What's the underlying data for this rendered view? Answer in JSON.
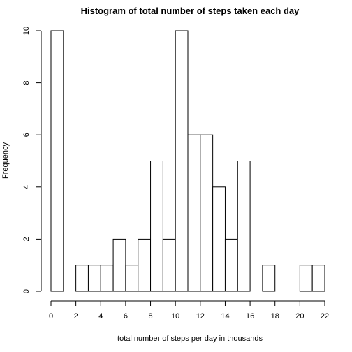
{
  "chart_data": {
    "type": "bar",
    "title": "Histogram of total number of steps taken each day",
    "xlabel": "total number of steps per day in thousands",
    "ylabel": "Frequency",
    "bin_width": 1,
    "bins": [
      {
        "start": 0,
        "end": 1,
        "count": 10
      },
      {
        "start": 1,
        "end": 2,
        "count": 0
      },
      {
        "start": 2,
        "end": 3,
        "count": 1
      },
      {
        "start": 3,
        "end": 4,
        "count": 1
      },
      {
        "start": 4,
        "end": 5,
        "count": 1
      },
      {
        "start": 5,
        "end": 6,
        "count": 2
      },
      {
        "start": 6,
        "end": 7,
        "count": 1
      },
      {
        "start": 7,
        "end": 8,
        "count": 2
      },
      {
        "start": 8,
        "end": 9,
        "count": 5
      },
      {
        "start": 9,
        "end": 10,
        "count": 2
      },
      {
        "start": 10,
        "end": 11,
        "count": 10
      },
      {
        "start": 11,
        "end": 12,
        "count": 6
      },
      {
        "start": 12,
        "end": 13,
        "count": 6
      },
      {
        "start": 13,
        "end": 14,
        "count": 4
      },
      {
        "start": 14,
        "end": 15,
        "count": 2
      },
      {
        "start": 15,
        "end": 16,
        "count": 5
      },
      {
        "start": 16,
        "end": 17,
        "count": 0
      },
      {
        "start": 17,
        "end": 18,
        "count": 1
      },
      {
        "start": 18,
        "end": 19,
        "count": 0
      },
      {
        "start": 19,
        "end": 20,
        "count": 0
      },
      {
        "start": 20,
        "end": 21,
        "count": 1
      },
      {
        "start": 21,
        "end": 22,
        "count": 1
      }
    ],
    "xlim": [
      0,
      22
    ],
    "ylim": [
      0,
      10
    ],
    "xticks": [
      0,
      2,
      4,
      6,
      8,
      10,
      12,
      14,
      16,
      18,
      20,
      22
    ],
    "yticks": [
      0,
      2,
      4,
      6,
      8,
      10
    ],
    "bar_fill": "#ffffff",
    "bar_stroke": "#000000",
    "grid": false,
    "legend": false
  }
}
